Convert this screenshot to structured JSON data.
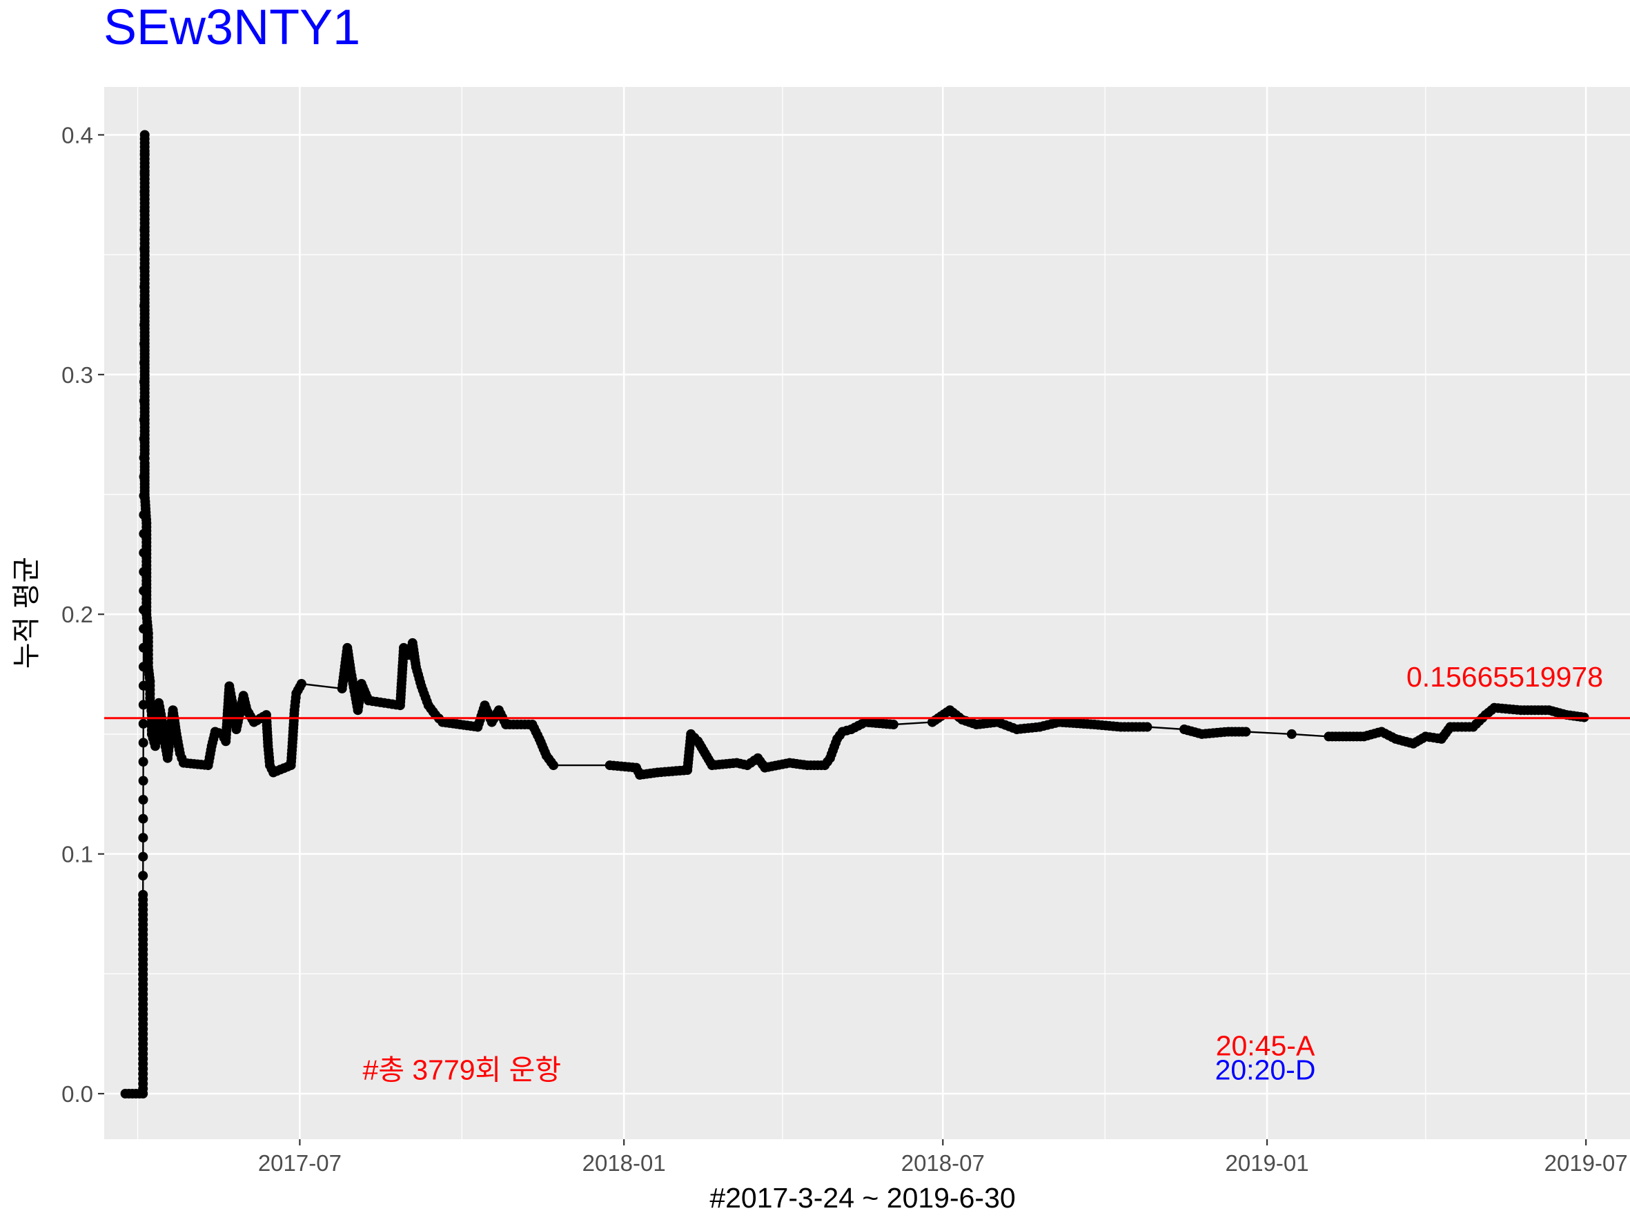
{
  "chart_data": {
    "type": "line",
    "title": "SEw3NTY1",
    "xlabel": "#2017-3-24 ~ 2019-6-30",
    "ylabel": "누적 평균",
    "x_range": [
      "2017-03-12",
      "2019-07-26"
    ],
    "ylim": [
      -0.019,
      0.42
    ],
    "x_ticks": [
      "2017-07",
      "2018-01",
      "2018-07",
      "2019-01",
      "2019-07"
    ],
    "y_ticks": [
      0.0,
      0.1,
      0.2,
      0.3,
      0.4
    ],
    "y_tick_labels": [
      "0.0",
      "0.1",
      "0.2",
      "0.3",
      "0.4"
    ],
    "grid": true,
    "line_color": "#000000",
    "point_color": "#000000",
    "hline": {
      "y": 0.1566551997,
      "color": "#ff0000",
      "label": "0.15665519978"
    },
    "annotations": [
      {
        "text": "#총 3779회 운항",
        "x": "2017-10-01",
        "y": 0.01,
        "color": "#ff0000"
      },
      {
        "text": "20:45-A",
        "x": "2018-12-31",
        "y": 0.02,
        "color": "#ff0000"
      },
      {
        "text": "20:20-D",
        "x": "2018-12-31",
        "y": 0.01,
        "color": "#0000ff"
      }
    ],
    "series": [
      {
        "points": [
          [
            "2017-03-24",
            0.0
          ],
          [
            "2017-04-03",
            0.0
          ],
          [
            "2017-04-03",
            0.083
          ],
          [
            "2017-04-04",
            0.4
          ],
          [
            "2017-04-04",
            0.333
          ],
          [
            "2017-04-04",
            0.313
          ],
          [
            "2017-04-04",
            0.294
          ],
          [
            "2017-04-04",
            0.286
          ],
          [
            "2017-04-04",
            0.278
          ],
          [
            "2017-04-04",
            0.267
          ],
          [
            "2017-04-04",
            0.263
          ],
          [
            "2017-04-04",
            0.25
          ],
          [
            "2017-04-05",
            0.238
          ],
          [
            "2017-04-05",
            0.23
          ],
          [
            "2017-04-05",
            0.222
          ],
          [
            "2017-04-05",
            0.214
          ],
          [
            "2017-04-05",
            0.208
          ],
          [
            "2017-04-05",
            0.2
          ],
          [
            "2017-04-06",
            0.192
          ],
          [
            "2017-04-06",
            0.185
          ],
          [
            "2017-04-06",
            0.178
          ],
          [
            "2017-04-07",
            0.172
          ],
          [
            "2017-04-07",
            0.165
          ],
          [
            "2017-04-08",
            0.158
          ],
          [
            "2017-04-08",
            0.15
          ],
          [
            "2017-04-10",
            0.145
          ],
          [
            "2017-04-12",
            0.163
          ],
          [
            "2017-04-14",
            0.155
          ],
          [
            "2017-04-15",
            0.148
          ],
          [
            "2017-04-17",
            0.14
          ],
          [
            "2017-04-20",
            0.16
          ],
          [
            "2017-04-22",
            0.15
          ],
          [
            "2017-04-24",
            0.142
          ],
          [
            "2017-04-26",
            0.138
          ],
          [
            "2017-05-10",
            0.137
          ],
          [
            "2017-05-12",
            0.145
          ],
          [
            "2017-05-14",
            0.151
          ],
          [
            "2017-05-18",
            0.15
          ],
          [
            "2017-05-20",
            0.147
          ],
          [
            "2017-05-22",
            0.17
          ],
          [
            "2017-05-24",
            0.162
          ],
          [
            "2017-05-26",
            0.152
          ],
          [
            "2017-05-30",
            0.166
          ],
          [
            "2017-06-01",
            0.16
          ],
          [
            "2017-06-05",
            0.155
          ],
          [
            "2017-06-12",
            0.158
          ],
          [
            "2017-06-13",
            0.145
          ],
          [
            "2017-06-14",
            0.137
          ],
          [
            "2017-06-16",
            0.134
          ],
          [
            "2017-06-26",
            0.137
          ],
          [
            "2017-06-27",
            0.148
          ],
          [
            "2017-06-28",
            0.16
          ],
          [
            "2017-06-29",
            0.167
          ],
          [
            "2017-07-02",
            0.171
          ],
          [
            "2017-07-25",
            0.169
          ],
          [
            "2017-07-28",
            0.186
          ],
          [
            "2017-07-30",
            0.176
          ],
          [
            "2017-08-01",
            0.168
          ],
          [
            "2017-08-03",
            0.16
          ],
          [
            "2017-08-05",
            0.171
          ],
          [
            "2017-08-09",
            0.164
          ],
          [
            "2017-08-18",
            0.163
          ],
          [
            "2017-08-27",
            0.162
          ],
          [
            "2017-08-29",
            0.186
          ],
          [
            "2017-09-01",
            0.183
          ],
          [
            "2017-09-03",
            0.188
          ],
          [
            "2017-09-05",
            0.178
          ],
          [
            "2017-09-08",
            0.17
          ],
          [
            "2017-09-12",
            0.162
          ],
          [
            "2017-09-16",
            0.158
          ],
          [
            "2017-09-20",
            0.155
          ],
          [
            "2017-10-10",
            0.153
          ],
          [
            "2017-10-14",
            0.162
          ],
          [
            "2017-10-18",
            0.155
          ],
          [
            "2017-10-22",
            0.16
          ],
          [
            "2017-10-26",
            0.154
          ],
          [
            "2017-11-10",
            0.154
          ],
          [
            "2017-11-14",
            0.148
          ],
          [
            "2017-11-18",
            0.141
          ],
          [
            "2017-11-22",
            0.137
          ],
          [
            "2017-12-24",
            0.137
          ],
          [
            "2018-01-08",
            0.136
          ],
          [
            "2018-01-10",
            0.133
          ],
          [
            "2018-01-20",
            0.134
          ],
          [
            "2018-02-06",
            0.135
          ],
          [
            "2018-02-08",
            0.15
          ],
          [
            "2018-02-12",
            0.147
          ],
          [
            "2018-02-16",
            0.142
          ],
          [
            "2018-02-20",
            0.137
          ],
          [
            "2018-03-06",
            0.138
          ],
          [
            "2018-03-12",
            0.137
          ],
          [
            "2018-03-18",
            0.14
          ],
          [
            "2018-03-22",
            0.136
          ],
          [
            "2018-04-05",
            0.138
          ],
          [
            "2018-04-15",
            0.137
          ],
          [
            "2018-04-25",
            0.137
          ],
          [
            "2018-04-28",
            0.14
          ],
          [
            "2018-05-02",
            0.148
          ],
          [
            "2018-05-05",
            0.151
          ],
          [
            "2018-05-10",
            0.152
          ],
          [
            "2018-05-18",
            0.155
          ],
          [
            "2018-06-03",
            0.154
          ],
          [
            "2018-06-25",
            0.155
          ],
          [
            "2018-07-05",
            0.16
          ],
          [
            "2018-07-12",
            0.156
          ],
          [
            "2018-07-20",
            0.154
          ],
          [
            "2018-08-01",
            0.155
          ],
          [
            "2018-08-12",
            0.152
          ],
          [
            "2018-08-25",
            0.153
          ],
          [
            "2018-09-05",
            0.155
          ],
          [
            "2018-09-25",
            0.154
          ],
          [
            "2018-10-10",
            0.153
          ],
          [
            "2018-10-25",
            0.153
          ],
          [
            "2018-11-15",
            0.152
          ],
          [
            "2018-11-25",
            0.15
          ],
          [
            "2018-12-10",
            0.151
          ],
          [
            "2018-12-20",
            0.151
          ],
          [
            "2019-01-15",
            0.15
          ],
          [
            "2019-02-05",
            0.149
          ],
          [
            "2019-02-25",
            0.149
          ],
          [
            "2019-03-07",
            0.151
          ],
          [
            "2019-03-15",
            0.148
          ],
          [
            "2019-03-25",
            0.146
          ],
          [
            "2019-04-01",
            0.149
          ],
          [
            "2019-04-10",
            0.148
          ],
          [
            "2019-04-15",
            0.153
          ],
          [
            "2019-04-28",
            0.153
          ],
          [
            "2019-05-05",
            0.158
          ],
          [
            "2019-05-10",
            0.161
          ],
          [
            "2019-05-25",
            0.16
          ],
          [
            "2019-06-10",
            0.16
          ],
          [
            "2019-06-20",
            0.158
          ],
          [
            "2019-06-30",
            0.157
          ]
        ]
      }
    ]
  }
}
